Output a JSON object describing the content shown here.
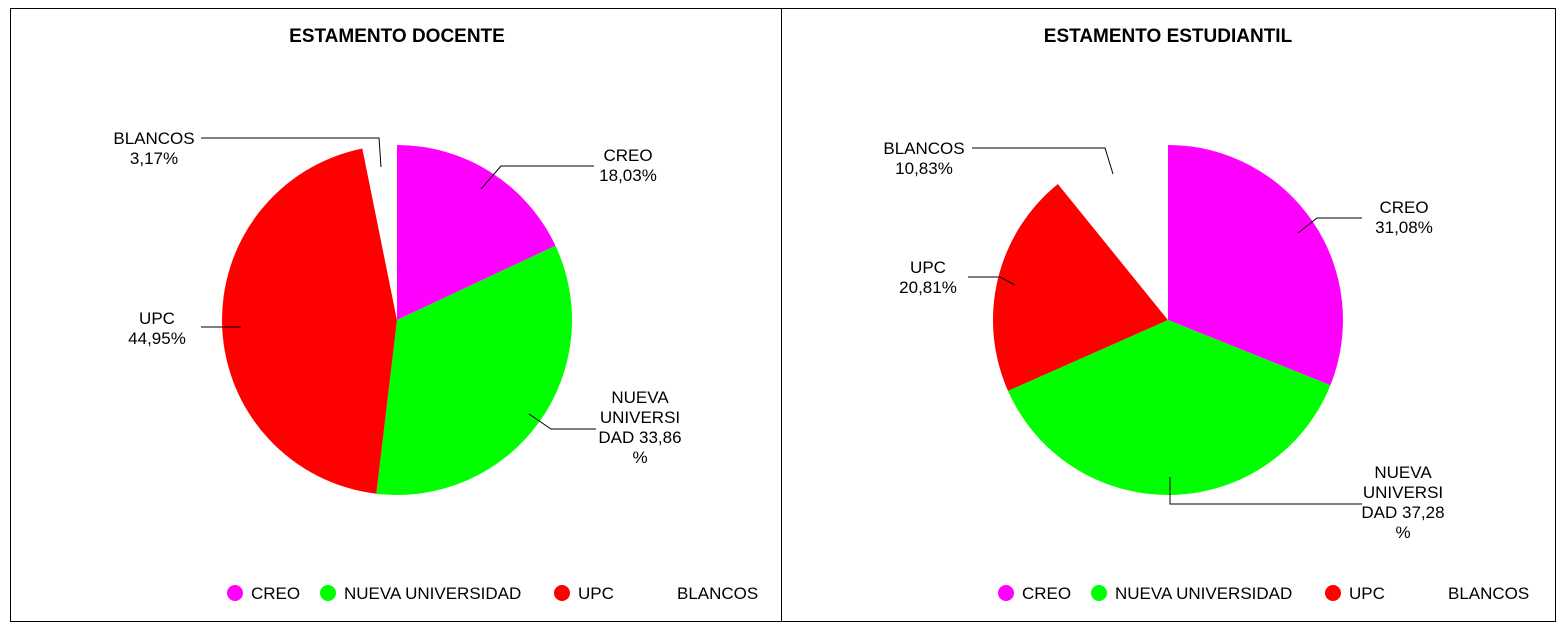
{
  "colors": {
    "CREO": "#ff00ff",
    "NUEVA UNIVERSIDAD": "#00ff00",
    "UPC": "#ff0000",
    "BLANCOS": "#ffffff"
  },
  "chart_data": [
    {
      "type": "pie",
      "title": "ESTAMENTO DOCENTE",
      "categories": [
        "CREO",
        "NUEVA UNIVERSIDAD",
        "UPC",
        "BLANCOS"
      ],
      "values": [
        18.03,
        33.86,
        44.95,
        3.17
      ],
      "data_labels": [
        [
          "CREO",
          "18,03%"
        ],
        [
          "NUEVA",
          "UNIVERSI",
          "DAD 33,86",
          "%"
        ],
        [
          "UPC",
          "44,95%"
        ],
        [
          "BLANCOS",
          "3,17%"
        ]
      ],
      "legend": [
        "CREO",
        "NUEVA UNIVERSIDAD",
        "UPC",
        "BLANCOS"
      ],
      "legend_position": "bottom-right"
    },
    {
      "type": "pie",
      "title": "ESTAMENTO ESTUDIANTIL",
      "categories": [
        "CREO",
        "NUEVA UNIVERSIDAD",
        "UPC",
        "BLANCOS"
      ],
      "values": [
        31.08,
        37.28,
        20.81,
        10.83
      ],
      "data_labels": [
        [
          "CREO",
          "31,08%"
        ],
        [
          "NUEVA",
          "UNIVERSI",
          "DAD 37,28",
          "%"
        ],
        [
          "UPC",
          "20,81%"
        ],
        [
          "BLANCOS",
          "10,83%"
        ]
      ],
      "legend": [
        "CREO",
        "NUEVA UNIVERSIDAD",
        "UPC",
        "BLANCOS"
      ],
      "legend_position": "bottom-right"
    }
  ]
}
